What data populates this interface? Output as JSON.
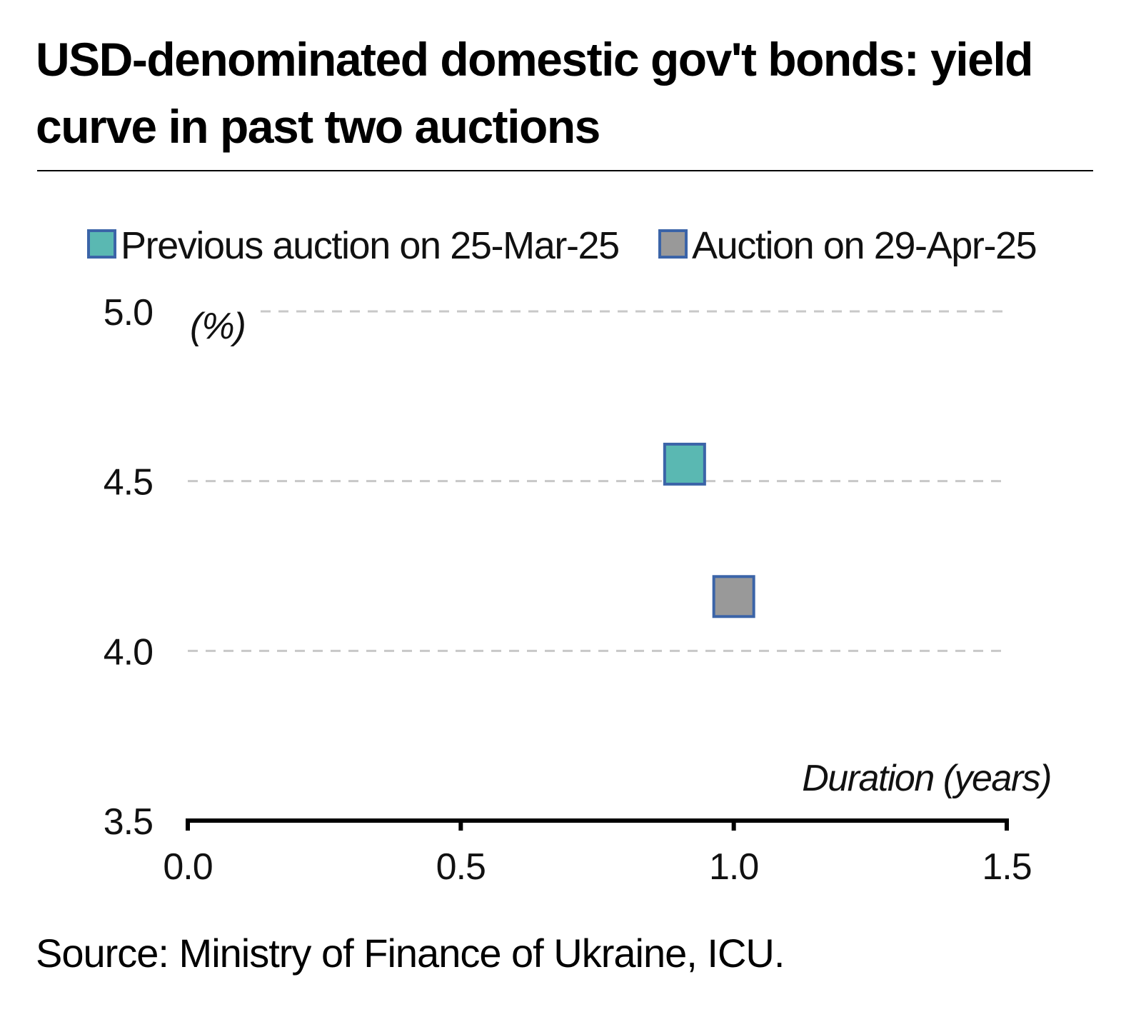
{
  "chart_data": {
    "type": "scatter",
    "title": "USD-denominated domestic gov't bonds: yield curve in past two auctions",
    "xlabel": "Duration (years)",
    "ylabel": "(%)",
    "xlim": [
      0,
      1.5
    ],
    "ylim": [
      3.5,
      5.0
    ],
    "x_ticks": [
      "0.0",
      "0.5",
      "1.0",
      "1.5"
    ],
    "y_ticks": [
      "5.0",
      "4.5",
      "4.0",
      "3.5"
    ],
    "grid": "horizontal dashed",
    "legend_position": "top",
    "series": [
      {
        "name": "Previous auction on 25-Mar-25",
        "color": "#5ab8b2",
        "edge_color": "#3b64a8",
        "points": [
          {
            "x": 0.91,
            "y": 4.55
          }
        ]
      },
      {
        "name": "Auction on 29-Apr-25",
        "color": "#999999",
        "edge_color": "#3b64a8",
        "points": [
          {
            "x": 1.0,
            "y": 4.16
          }
        ]
      }
    ]
  },
  "source": "Source: Ministry of Finance of Ukraine, ICU."
}
